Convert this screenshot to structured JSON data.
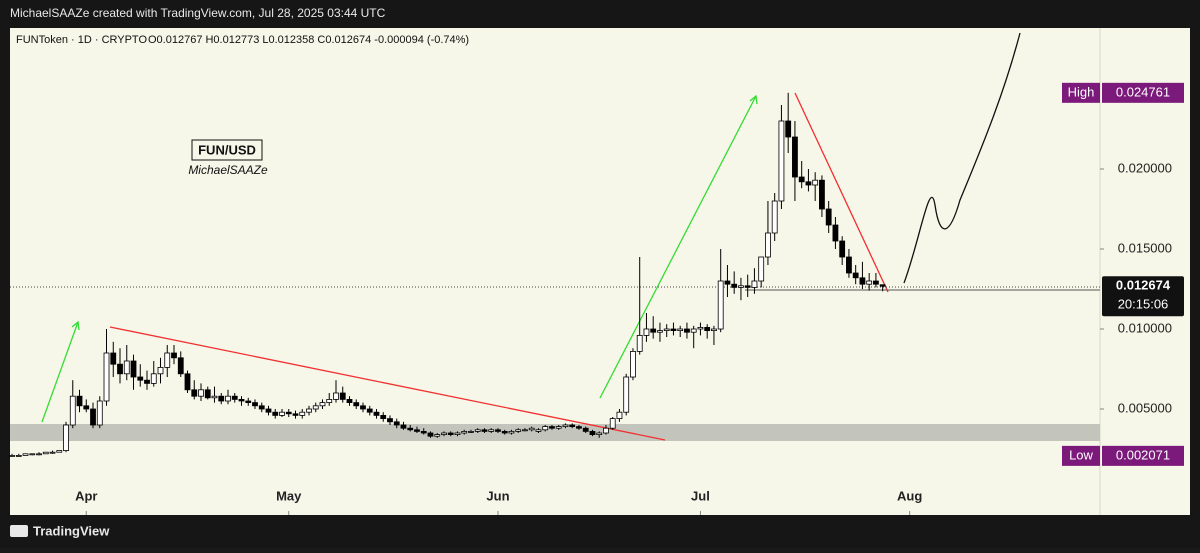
{
  "header": {
    "credit": "MichaelSAAZe created with TradingView.com, Jul 28, 2025 03:44 UTC"
  },
  "footer": {
    "brand": "TradingView"
  },
  "chart_data": {
    "type": "candlestick",
    "symbol": "FUNToken · 1D · CRYPTO",
    "ohlc_text": "O0.012767 H0.012773 L0.012358 C0.012674 -0.000094 (-0.74%)",
    "watermark_title": "FUN/USD",
    "watermark_author": "MichaelSAAZe",
    "up_color": "#ffffff",
    "down_color": "#000000",
    "wick_color": "#000000",
    "xlim": [
      -0.3,
      161.2
    ],
    "xticks": [
      {
        "value": 11,
        "label": "Apr"
      },
      {
        "value": 41,
        "label": "May"
      },
      {
        "value": 72,
        "label": "Jun"
      },
      {
        "value": 102,
        "label": "Jul"
      },
      {
        "value": 133,
        "label": "Aug"
      }
    ],
    "ylim": [
      -0.001625,
      0.028813
    ],
    "yticks": [
      {
        "value": 0.005,
        "label": "0.005000"
      },
      {
        "value": 0.01,
        "label": "0.010000"
      },
      {
        "value": 0.015,
        "label": "0.015000"
      },
      {
        "value": 0.02,
        "label": "0.020000"
      }
    ],
    "high": {
      "label": "High",
      "value": 0.024761
    },
    "low": {
      "label": "Low",
      "value": 0.002071
    },
    "last": {
      "value": 0.012674,
      "countdown": "20:15:06"
    },
    "ohlc": [
      [
        0.0021,
        0.0022,
        0.0021,
        0.0021
      ],
      [
        0.0021,
        0.0022,
        0.0021,
        0.0021
      ],
      [
        0.0021,
        0.0022,
        0.0021,
        0.0022
      ],
      [
        0.0022,
        0.0022,
        0.0021,
        0.0022
      ],
      [
        0.0022,
        0.0023,
        0.0021,
        0.0022
      ],
      [
        0.0022,
        0.0023,
        0.0022,
        0.0023
      ],
      [
        0.0023,
        0.0024,
        0.0022,
        0.0023
      ],
      [
        0.0023,
        0.0024,
        0.0023,
        0.0024
      ],
      [
        0.0024,
        0.0042,
        0.0023,
        0.004
      ],
      [
        0.004,
        0.0068,
        0.0038,
        0.0058
      ],
      [
        0.0058,
        0.0062,
        0.0048,
        0.0052
      ],
      [
        0.0052,
        0.0056,
        0.0048,
        0.005
      ],
      [
        0.005,
        0.0054,
        0.0038,
        0.004
      ],
      [
        0.004,
        0.0058,
        0.0038,
        0.0055
      ],
      [
        0.0055,
        0.01,
        0.0052,
        0.0085
      ],
      [
        0.0085,
        0.0092,
        0.007,
        0.0078
      ],
      [
        0.0078,
        0.0088,
        0.0066,
        0.0072
      ],
      [
        0.0072,
        0.009,
        0.0068,
        0.008
      ],
      [
        0.008,
        0.0084,
        0.0062,
        0.007
      ],
      [
        0.007,
        0.0078,
        0.0064,
        0.0068
      ],
      [
        0.0068,
        0.0074,
        0.0062,
        0.0066
      ],
      [
        0.0066,
        0.008,
        0.0064,
        0.0072
      ],
      [
        0.0072,
        0.0082,
        0.0066,
        0.0076
      ],
      [
        0.0076,
        0.009,
        0.007,
        0.0085
      ],
      [
        0.0085,
        0.009,
        0.0078,
        0.0082
      ],
      [
        0.0082,
        0.0086,
        0.007,
        0.0072
      ],
      [
        0.0072,
        0.0074,
        0.006,
        0.0062
      ],
      [
        0.0062,
        0.0068,
        0.0056,
        0.0058
      ],
      [
        0.0058,
        0.0066,
        0.0055,
        0.0062
      ],
      [
        0.0062,
        0.0064,
        0.0056,
        0.0057
      ],
      [
        0.0057,
        0.0064,
        0.0054,
        0.0058
      ],
      [
        0.0058,
        0.006,
        0.0053,
        0.0055
      ],
      [
        0.0055,
        0.0062,
        0.0053,
        0.0058
      ],
      [
        0.0058,
        0.006,
        0.0054,
        0.0056
      ],
      [
        0.0056,
        0.0058,
        0.0052,
        0.0055
      ],
      [
        0.0055,
        0.0057,
        0.0052,
        0.0054
      ],
      [
        0.0054,
        0.0056,
        0.005,
        0.0052
      ],
      [
        0.0052,
        0.0054,
        0.0048,
        0.005
      ],
      [
        0.005,
        0.0052,
        0.0046,
        0.0048
      ],
      [
        0.0048,
        0.005,
        0.0044,
        0.0046
      ],
      [
        0.0046,
        0.005,
        0.0045,
        0.0048
      ],
      [
        0.0048,
        0.005,
        0.0045,
        0.0047
      ],
      [
        0.0047,
        0.0049,
        0.0044,
        0.0046
      ],
      [
        0.0046,
        0.005,
        0.0044,
        0.0048
      ],
      [
        0.0048,
        0.0052,
        0.0046,
        0.005
      ],
      [
        0.005,
        0.0054,
        0.0048,
        0.0052
      ],
      [
        0.0052,
        0.0056,
        0.005,
        0.0054
      ],
      [
        0.0054,
        0.006,
        0.0052,
        0.0056
      ],
      [
        0.0056,
        0.0068,
        0.0054,
        0.006
      ],
      [
        0.006,
        0.0064,
        0.0054,
        0.0056
      ],
      [
        0.0056,
        0.0058,
        0.0052,
        0.0054
      ],
      [
        0.0054,
        0.0056,
        0.005,
        0.0052
      ],
      [
        0.0052,
        0.0054,
        0.0048,
        0.005
      ],
      [
        0.005,
        0.0052,
        0.0046,
        0.0048
      ],
      [
        0.0048,
        0.005,
        0.0044,
        0.0046
      ],
      [
        0.0046,
        0.0048,
        0.0042,
        0.0044
      ],
      [
        0.0044,
        0.0046,
        0.004,
        0.0042
      ],
      [
        0.0042,
        0.0044,
        0.0038,
        0.004
      ],
      [
        0.004,
        0.0042,
        0.0037,
        0.0038
      ],
      [
        0.0038,
        0.004,
        0.0036,
        0.0037
      ],
      [
        0.0037,
        0.0039,
        0.0035,
        0.0036
      ],
      [
        0.0036,
        0.0038,
        0.0034,
        0.0035
      ],
      [
        0.0035,
        0.0036,
        0.0032,
        0.0033
      ],
      [
        0.0033,
        0.0035,
        0.0032,
        0.0034
      ],
      [
        0.0034,
        0.0036,
        0.0033,
        0.0035
      ],
      [
        0.0035,
        0.0036,
        0.0033,
        0.0034
      ],
      [
        0.0034,
        0.0036,
        0.0033,
        0.0035
      ],
      [
        0.0035,
        0.0037,
        0.0034,
        0.0036
      ],
      [
        0.0036,
        0.0037,
        0.0035,
        0.0036
      ],
      [
        0.0036,
        0.0038,
        0.0035,
        0.0037
      ],
      [
        0.0037,
        0.0038,
        0.0035,
        0.0036
      ],
      [
        0.0036,
        0.0038,
        0.0035,
        0.0037
      ],
      [
        0.0037,
        0.0038,
        0.0035,
        0.0036
      ],
      [
        0.0036,
        0.0037,
        0.0034,
        0.0035
      ],
      [
        0.0035,
        0.0037,
        0.0034,
        0.0036
      ],
      [
        0.0036,
        0.0038,
        0.0035,
        0.0037
      ],
      [
        0.0037,
        0.0038,
        0.0036,
        0.0037
      ],
      [
        0.0037,
        0.0039,
        0.0036,
        0.0038
      ],
      [
        0.0036,
        0.0038,
        0.0035,
        0.0037
      ],
      [
        0.0037,
        0.004,
        0.0036,
        0.0039
      ],
      [
        0.0039,
        0.004,
        0.0037,
        0.0038
      ],
      [
        0.0038,
        0.004,
        0.0037,
        0.0039
      ],
      [
        0.0039,
        0.0041,
        0.0038,
        0.004
      ],
      [
        0.004,
        0.0041,
        0.0038,
        0.0039
      ],
      [
        0.0039,
        0.004,
        0.0037,
        0.0038
      ],
      [
        0.0038,
        0.0039,
        0.0035,
        0.0036
      ],
      [
        0.0036,
        0.0037,
        0.0033,
        0.0034
      ],
      [
        0.0034,
        0.0036,
        0.0032,
        0.0035
      ],
      [
        0.0035,
        0.004,
        0.0034,
        0.0038
      ],
      [
        0.0038,
        0.0045,
        0.0037,
        0.0044
      ],
      [
        0.0044,
        0.005,
        0.0042,
        0.0048
      ],
      [
        0.0048,
        0.0072,
        0.0046,
        0.007
      ],
      [
        0.007,
        0.0088,
        0.0068,
        0.0086
      ],
      [
        0.0086,
        0.0145,
        0.0084,
        0.0096
      ],
      [
        0.0096,
        0.011,
        0.0092,
        0.01
      ],
      [
        0.01,
        0.0108,
        0.0094,
        0.0098
      ],
      [
        0.0098,
        0.0104,
        0.0092,
        0.0099
      ],
      [
        0.0099,
        0.0103,
        0.0095,
        0.01
      ],
      [
        0.01,
        0.0104,
        0.0096,
        0.0099
      ],
      [
        0.0099,
        0.0102,
        0.0095,
        0.01
      ],
      [
        0.01,
        0.0104,
        0.0094,
        0.0098
      ],
      [
        0.0098,
        0.0102,
        0.0088,
        0.01
      ],
      [
        0.01,
        0.0104,
        0.0096,
        0.0101
      ],
      [
        0.0101,
        0.0103,
        0.0094,
        0.0099
      ],
      [
        0.0099,
        0.0102,
        0.009,
        0.01
      ],
      [
        0.01,
        0.015,
        0.0098,
        0.013
      ],
      [
        0.013,
        0.014,
        0.012,
        0.0128
      ],
      [
        0.0128,
        0.0136,
        0.0122,
        0.0126
      ],
      [
        0.0126,
        0.0132,
        0.0118,
        0.0127
      ],
      [
        0.0127,
        0.0134,
        0.012,
        0.0126
      ],
      [
        0.0126,
        0.0138,
        0.0122,
        0.013
      ],
      [
        0.013,
        0.0145,
        0.0126,
        0.0145
      ],
      [
        0.0145,
        0.018,
        0.014,
        0.016
      ],
      [
        0.016,
        0.0185,
        0.0155,
        0.018
      ],
      [
        0.018,
        0.024,
        0.0175,
        0.023
      ],
      [
        0.023,
        0.024761,
        0.021,
        0.022
      ],
      [
        0.022,
        0.023,
        0.018,
        0.0195
      ],
      [
        0.0195,
        0.0205,
        0.0188,
        0.0192
      ],
      [
        0.0192,
        0.02,
        0.0186,
        0.019
      ],
      [
        0.019,
        0.0198,
        0.018,
        0.0193
      ],
      [
        0.0193,
        0.0196,
        0.017,
        0.0175
      ],
      [
        0.0175,
        0.018,
        0.016,
        0.0165
      ],
      [
        0.0165,
        0.017,
        0.015,
        0.0155
      ],
      [
        0.0155,
        0.0158,
        0.014,
        0.0145
      ],
      [
        0.0145,
        0.015,
        0.0132,
        0.0135
      ],
      [
        0.0135,
        0.014,
        0.0128,
        0.0132
      ],
      [
        0.0132,
        0.0142,
        0.0125,
        0.0128
      ],
      [
        0.0128,
        0.0135,
        0.0124,
        0.013
      ],
      [
        0.013,
        0.0135,
        0.0126,
        0.0128
      ],
      [
        0.012767,
        0.012773,
        0.012358,
        0.012674
      ]
    ]
  }
}
